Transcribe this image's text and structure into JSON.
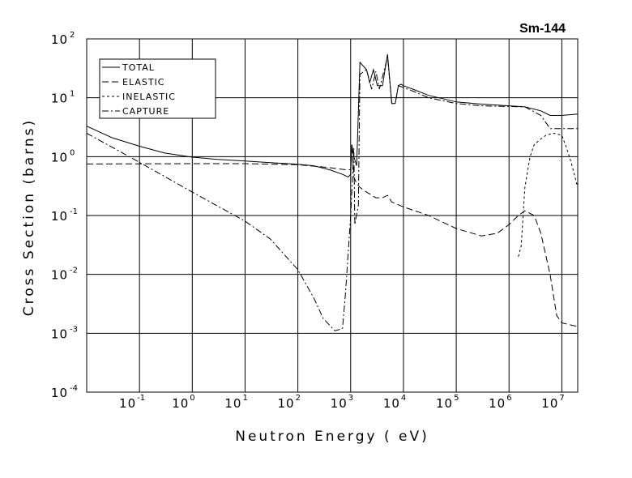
{
  "chart_data": {
    "type": "line",
    "title": "Sm-144",
    "xlabel": "Neutron Energy ( eV)",
    "ylabel": "Cross Section (barns)",
    "x_scale": "log",
    "y_scale": "log",
    "xlim": [
      0.01,
      20000000
    ],
    "ylim": [
      0.0001,
      100
    ],
    "grid": true,
    "legend_position": "top-left",
    "x_ticks": [
      {
        "base": "10",
        "exp": "-1",
        "value": 0.1
      },
      {
        "base": "10",
        "exp": "0",
        "value": 1
      },
      {
        "base": "10",
        "exp": "1",
        "value": 10
      },
      {
        "base": "10",
        "exp": "2",
        "value": 100
      },
      {
        "base": "10",
        "exp": "3",
        "value": 1000
      },
      {
        "base": "10",
        "exp": "4",
        "value": 10000
      },
      {
        "base": "10",
        "exp": "5",
        "value": 100000
      },
      {
        "base": "10",
        "exp": "6",
        "value": 1000000
      },
      {
        "base": "10",
        "exp": "7",
        "value": 10000000
      }
    ],
    "y_ticks": [
      {
        "base": "10",
        "exp": "2",
        "value": 100
      },
      {
        "base": "10",
        "exp": "1",
        "value": 10
      },
      {
        "base": "10",
        "exp": "0",
        "value": 1
      },
      {
        "base": "10",
        "exp": "-1",
        "value": 0.1
      },
      {
        "base": "10",
        "exp": "-2",
        "value": 0.01
      },
      {
        "base": "10",
        "exp": "-3",
        "value": 0.001
      },
      {
        "base": "10",
        "exp": "-4",
        "value": 0.0001
      }
    ],
    "series": [
      {
        "name": "TOTAL",
        "dash": "solid",
        "points": [
          [
            0.01,
            3.3
          ],
          [
            0.03,
            2.1
          ],
          [
            0.1,
            1.5
          ],
          [
            0.3,
            1.15
          ],
          [
            1,
            0.98
          ],
          [
            3,
            0.9
          ],
          [
            10,
            0.84
          ],
          [
            30,
            0.79
          ],
          [
            100,
            0.74
          ],
          [
            200,
            0.7
          ],
          [
            400,
            0.6
          ],
          [
            700,
            0.5
          ],
          [
            900,
            0.45
          ],
          [
            1000,
            0.5
          ],
          [
            1050,
            1.6
          ],
          [
            1150,
            1.0
          ],
          [
            1300,
            0.7
          ],
          [
            1500,
            40
          ],
          [
            2000,
            30
          ],
          [
            2300,
            18
          ],
          [
            2700,
            30
          ],
          [
            3200,
            16
          ],
          [
            4000,
            16
          ],
          [
            5000,
            55
          ],
          [
            6000,
            8
          ],
          [
            7000,
            8
          ],
          [
            8000,
            16
          ],
          [
            9000,
            17
          ],
          [
            10000,
            16
          ],
          [
            15000,
            14
          ],
          [
            30000,
            11
          ],
          [
            100000,
            8.5
          ],
          [
            300000,
            7.8
          ],
          [
            1000000,
            7.3
          ],
          [
            2000000,
            7.0
          ],
          [
            4000000,
            6.0
          ],
          [
            6000000,
            5.0
          ],
          [
            10000000,
            5.0
          ],
          [
            20000000,
            5.3
          ]
        ]
      },
      {
        "name": "ELASTIC",
        "dash": "dashed",
        "points": [
          [
            0.01,
            0.75
          ],
          [
            1,
            0.76
          ],
          [
            10,
            0.76
          ],
          [
            100,
            0.73
          ],
          [
            400,
            0.65
          ],
          [
            800,
            0.6
          ],
          [
            1000,
            0.6
          ],
          [
            1050,
            1.6
          ],
          [
            1150,
            0.45
          ],
          [
            1300,
            0.35
          ],
          [
            1500,
            0.3
          ],
          [
            2000,
            0.25
          ],
          [
            3000,
            0.2
          ],
          [
            4000,
            0.2
          ],
          [
            5000,
            0.22
          ],
          [
            6000,
            0.17
          ],
          [
            10000,
            0.14
          ],
          [
            30000,
            0.1
          ],
          [
            100000,
            0.06
          ],
          [
            300000,
            0.045
          ],
          [
            600000,
            0.05
          ],
          [
            1000000,
            0.07
          ],
          [
            1500000,
            0.1
          ],
          [
            2000000,
            0.12
          ],
          [
            3000000,
            0.1
          ],
          [
            4000000,
            0.05
          ],
          [
            6000000,
            0.01
          ],
          [
            8000000,
            0.002
          ],
          [
            10000000,
            0.0015
          ],
          [
            20000000,
            0.0013
          ]
        ]
      },
      {
        "name": "INELASTIC",
        "dash": "dotted",
        "points": [
          [
            1500000,
            0.02
          ],
          [
            1700000,
            0.03
          ],
          [
            2000000,
            0.3
          ],
          [
            2500000,
            1.0
          ],
          [
            3000000,
            1.6
          ],
          [
            4000000,
            2.0
          ],
          [
            5000000,
            2.3
          ],
          [
            7000000,
            2.5
          ],
          [
            10000000,
            2.3
          ],
          [
            12000000,
            1.5
          ],
          [
            15000000,
            0.8
          ],
          [
            20000000,
            0.3
          ]
        ]
      },
      {
        "name": "CAPTURE",
        "dash": "dashdot",
        "points": [
          [
            0.01,
            2.5
          ],
          [
            0.1,
            0.8
          ],
          [
            1,
            0.25
          ],
          [
            10,
            0.08
          ],
          [
            30,
            0.04
          ],
          [
            100,
            0.012
          ],
          [
            200,
            0.004
          ],
          [
            300,
            0.0018
          ],
          [
            500,
            0.0011
          ],
          [
            700,
            0.0012
          ],
          [
            800,
            0.005
          ],
          [
            1000,
            0.1
          ],
          [
            1150,
            1.4
          ],
          [
            1200,
            0.07
          ],
          [
            1400,
            0.15
          ],
          [
            1500,
            25
          ],
          [
            2000,
            30
          ],
          [
            2500,
            14
          ],
          [
            3000,
            28
          ],
          [
            3500,
            14
          ],
          [
            5000,
            50
          ],
          [
            6000,
            8
          ],
          [
            7000,
            8
          ],
          [
            8000,
            16
          ],
          [
            10000,
            15
          ],
          [
            15000,
            13
          ],
          [
            30000,
            10
          ],
          [
            100000,
            8
          ],
          [
            300000,
            7.3
          ],
          [
            1000000,
            7.1
          ],
          [
            2000000,
            7.0
          ],
          [
            4000000,
            5.0
          ],
          [
            6000000,
            3.0
          ],
          [
            10000000,
            3.0
          ],
          [
            20000000,
            3.0
          ]
        ]
      }
    ]
  }
}
